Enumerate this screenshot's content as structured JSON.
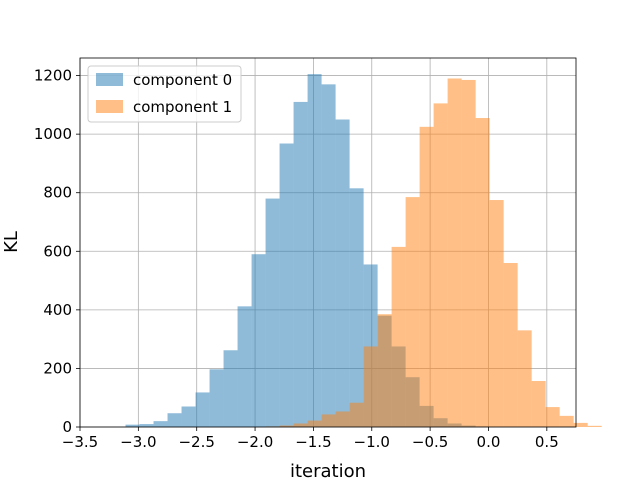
{
  "chart_data": {
    "type": "bar",
    "subtype": "histogram",
    "xlabel": "iteration",
    "ylabel": "KL",
    "xlim": [
      -3.5,
      0.75
    ],
    "ylim": [
      0,
      1260
    ],
    "xticks": [
      -3.5,
      -3.0,
      -2.5,
      -2.0,
      -1.5,
      -1.0,
      -0.5,
      0.0,
      0.5
    ],
    "xtick_labels": [
      "−3.5",
      "−3.0",
      "−2.5",
      "−2.0",
      "−1.5",
      "−1.0",
      "−0.5",
      "0.0",
      "0.5"
    ],
    "yticks": [
      0,
      200,
      400,
      600,
      800,
      1000,
      1200
    ],
    "ytick_labels": [
      "0",
      "200",
      "400",
      "600",
      "800",
      "1000",
      "1200"
    ],
    "grid": true,
    "legend_position": "top-left",
    "bin_width": 0.12,
    "series": [
      {
        "name": "component 0",
        "color": "#1f77b4",
        "alpha": 0.5,
        "bin_start": -3.11,
        "counts": [
          8,
          10,
          20,
          47,
          70,
          118,
          197,
          262,
          412,
          590,
          780,
          968,
          1110,
          1205,
          1170,
          1050,
          815,
          555,
          380,
          275,
          170,
          72,
          30,
          12,
          5,
          2
        ]
      },
      {
        "name": "component 1",
        "color": "#ff7f0e",
        "alpha": 0.5,
        "bin_start": -1.91,
        "counts": [
          2,
          5,
          12,
          22,
          43,
          53,
          83,
          275,
          385,
          615,
          785,
          1025,
          1105,
          1190,
          1185,
          1055,
          775,
          560,
          330,
          157,
          68,
          38,
          14,
          4
        ]
      }
    ]
  }
}
